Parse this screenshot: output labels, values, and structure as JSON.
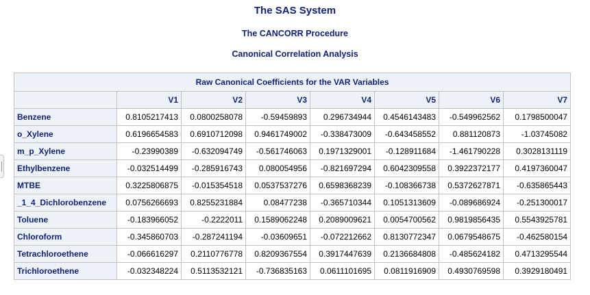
{
  "header": {
    "system_title": "The SAS System",
    "procedure_title": "The CANCORR Procedure",
    "analysis_title": "Canonical Correlation Analysis"
  },
  "table": {
    "caption": "Raw Canonical Coefficients for the VAR Variables",
    "columns": [
      "V1",
      "V2",
      "V3",
      "V4",
      "V5",
      "V6",
      "V7"
    ],
    "rows": [
      {
        "label": "Benzene",
        "values": [
          "0.8105217413",
          "0.0800258078",
          "-0.59459893",
          "0.296734944",
          "0.4546143483",
          "-0.549962562",
          "0.1798500047"
        ]
      },
      {
        "label": "o_Xylene",
        "values": [
          "0.6196654583",
          "0.6910712098",
          "0.9461749002",
          "-0.338473009",
          "-0.643458552",
          "0.881120873",
          "-1.03745082"
        ]
      },
      {
        "label": "m_p_Xylene",
        "values": [
          "-0.23990389",
          "-0.632094749",
          "-0.561746063",
          "0.1971329001",
          "-0.128911684",
          "-1.461790228",
          "0.3028131119"
        ]
      },
      {
        "label": "Ethylbenzene",
        "values": [
          "-0.032514499",
          "-0.285916743",
          "0.080054956",
          "-0.821697294",
          "0.6042309558",
          "0.3922372177",
          "0.4197360047"
        ]
      },
      {
        "label": "MTBE",
        "values": [
          "0.3225806875",
          "-0.015354518",
          "0.0537537276",
          "0.6598368239",
          "-0.108366738",
          "0.5372627871",
          "-0.635865443"
        ]
      },
      {
        "label": "_1_4_Dichlorobenzene",
        "values": [
          "0.0756266693",
          "0.8255231884",
          "0.08477238",
          "-0.365710344",
          "0.1051313609",
          "-0.089686924",
          "-0.251300017"
        ]
      },
      {
        "label": "Toluene",
        "values": [
          "-0.183966052",
          "-0.2222011",
          "0.1589062248",
          "0.2089009621",
          "0.0054700562",
          "0.9819856435",
          "0.5543925781"
        ]
      },
      {
        "label": "Chloroform",
        "values": [
          "-0.345860703",
          "-0.287241194",
          "-0.03609651",
          "-0.072212662",
          "0.8130772347",
          "0.0679548675",
          "-0.462580154"
        ]
      },
      {
        "label": "Tetrachloroethene",
        "values": [
          "-0.066616297",
          "0.2110776778",
          "0.8209367554",
          "0.3917447639",
          "0.2136684808",
          "-0.485624182",
          "0.4713295544"
        ]
      },
      {
        "label": "Trichloroethene",
        "values": [
          "-0.032348224",
          "0.5113532121",
          "-0.736835163",
          "0.0611101695",
          "0.0811916909",
          "0.4930769598",
          "0.3929180491"
        ]
      }
    ]
  },
  "colors": {
    "header_text": "#112277",
    "header_background": "#edf2f9",
    "border": "#c1c1c1"
  }
}
